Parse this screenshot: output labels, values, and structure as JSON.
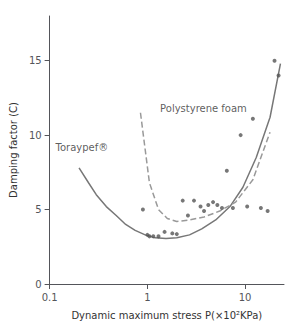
{
  "chart_data": {
    "type": "line",
    "xlabel": "Dynamic maximum stress P(×10²KPa)",
    "ylabel": "Damping factor (C)",
    "log": "x",
    "grid": false,
    "xlim": [
      0.1,
      25
    ],
    "ylim": [
      0,
      18
    ],
    "xticks": [
      0.1,
      1,
      10
    ],
    "yticks": [
      0,
      5,
      10,
      15
    ],
    "series": [
      {
        "type": "line",
        "line_style": "solid",
        "color": "#777777",
        "x": [
          0.2,
          0.25,
          0.3,
          0.38,
          0.48,
          0.6,
          0.75,
          0.95,
          1.2,
          1.55,
          2.0,
          2.7,
          3.6,
          5.0,
          7.0,
          9.5,
          13,
          18,
          23
        ],
        "values": [
          7.8,
          6.8,
          6.0,
          5.2,
          4.6,
          4.0,
          3.6,
          3.3,
          3.1,
          3.05,
          3.1,
          3.3,
          3.7,
          4.3,
          5.2,
          6.5,
          8.5,
          11.2,
          14.8
        ]
      },
      {
        "type": "line",
        "line_style": "dashed",
        "color": "#999999",
        "x": [
          0.85,
          1.05,
          1.3,
          1.6,
          2.0,
          2.7,
          3.8,
          5.5,
          8.0,
          12,
          18
        ],
        "values": [
          11.5,
          6.8,
          5.0,
          4.4,
          4.2,
          4.3,
          4.5,
          4.9,
          5.5,
          7.0,
          10.2
        ]
      },
      {
        "type": "scatter",
        "marker": "circle",
        "color": "#555555",
        "x": [
          0.9,
          1.0,
          1.05,
          1.15,
          1.3,
          1.5,
          1.8,
          2.0,
          2.3,
          2.6,
          3.0,
          3.5,
          3.8,
          4.2,
          4.7,
          5.2,
          5.8,
          6.5,
          7.5,
          9.0,
          10.5,
          12.0,
          14.5,
          17.0,
          20.0,
          22.0
        ],
        "values": [
          5.0,
          3.3,
          3.2,
          3.2,
          3.2,
          3.5,
          3.4,
          3.35,
          5.6,
          4.6,
          5.6,
          5.2,
          4.9,
          5.3,
          5.5,
          5.3,
          5.1,
          7.6,
          5.1,
          10.0,
          5.2,
          11.1,
          5.1,
          4.9,
          15.0,
          14.0
        ]
      }
    ],
    "annotations": [
      {
        "text": "Toraypef®",
        "x": 0.115,
        "y": 9.2
      },
      {
        "text": "Polystyrene foam",
        "x": 1.35,
        "y": 11.8
      }
    ]
  }
}
